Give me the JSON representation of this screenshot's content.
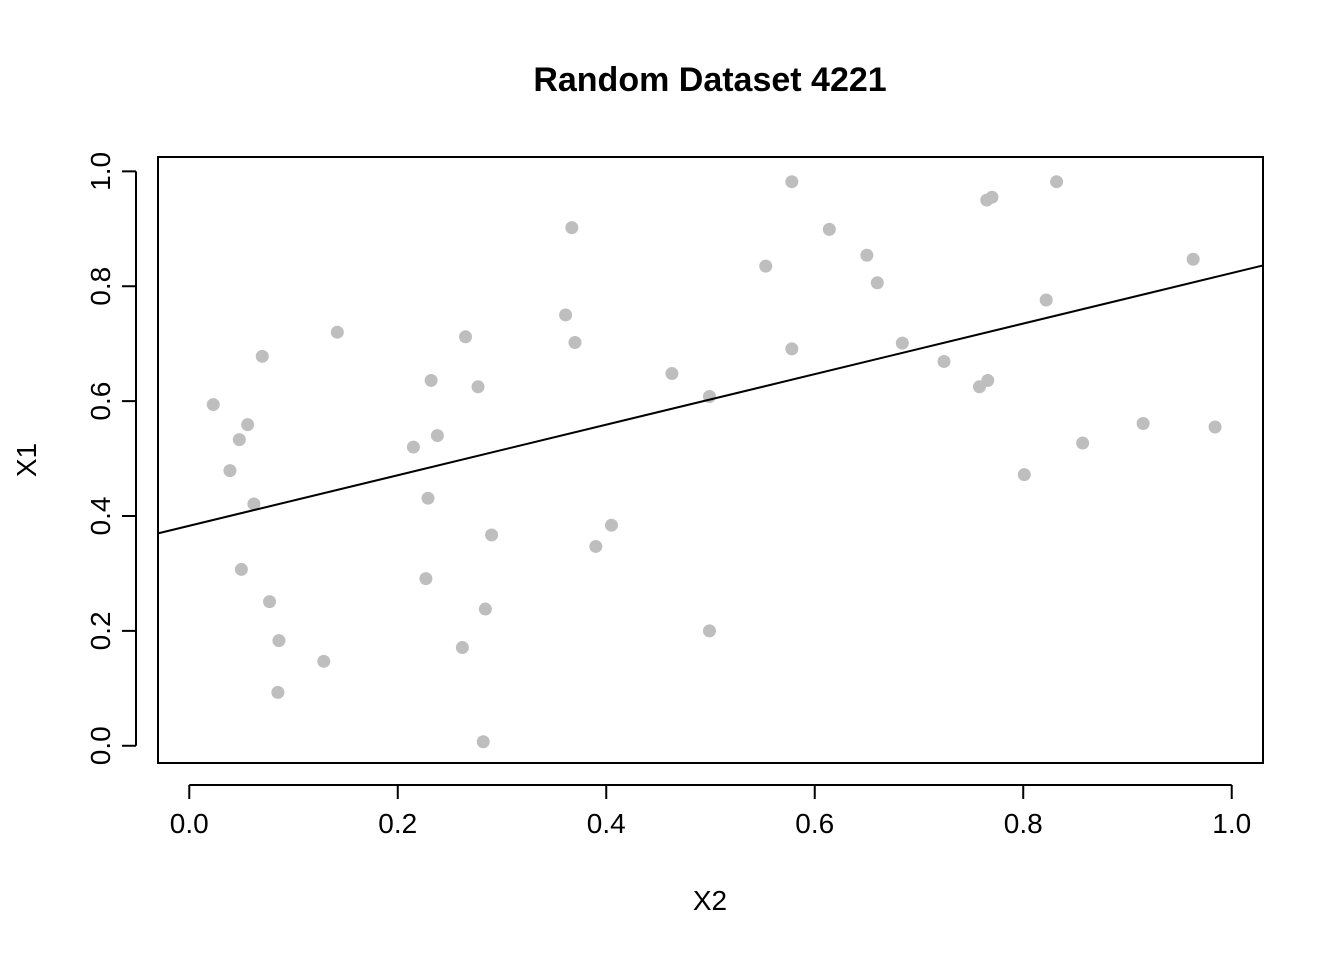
{
  "chart_data": {
    "type": "scatter",
    "title": "Random Dataset 4221",
    "xlabel": "X2",
    "ylabel": "X1",
    "xlim": [
      -0.03,
      1.03
    ],
    "ylim": [
      -0.03,
      1.025
    ],
    "x_ticks": [
      0.0,
      0.2,
      0.4,
      0.6,
      0.8,
      1.0
    ],
    "x_tick_labels": [
      "0.0",
      "0.2",
      "0.4",
      "0.6",
      "0.8",
      "1.0"
    ],
    "y_ticks": [
      0.0,
      0.2,
      0.4,
      0.6,
      0.8,
      1.0
    ],
    "y_tick_labels": [
      "0.0",
      "0.2",
      "0.4",
      "0.6",
      "0.8",
      "1.0"
    ],
    "grid": false,
    "point_color": "#bebebe",
    "line_color": "#000000",
    "points": [
      {
        "x": 0.023,
        "y": 0.594
      },
      {
        "x": 0.039,
        "y": 0.479
      },
      {
        "x": 0.048,
        "y": 0.533
      },
      {
        "x": 0.05,
        "y": 0.307
      },
      {
        "x": 0.056,
        "y": 0.559
      },
      {
        "x": 0.062,
        "y": 0.421
      },
      {
        "x": 0.07,
        "y": 0.678
      },
      {
        "x": 0.077,
        "y": 0.251
      },
      {
        "x": 0.085,
        "y": 0.093
      },
      {
        "x": 0.086,
        "y": 0.183
      },
      {
        "x": 0.129,
        "y": 0.147
      },
      {
        "x": 0.142,
        "y": 0.72
      },
      {
        "x": 0.215,
        "y": 0.52
      },
      {
        "x": 0.227,
        "y": 0.291
      },
      {
        "x": 0.229,
        "y": 0.431
      },
      {
        "x": 0.232,
        "y": 0.636
      },
      {
        "x": 0.238,
        "y": 0.54
      },
      {
        "x": 0.262,
        "y": 0.171
      },
      {
        "x": 0.265,
        "y": 0.712
      },
      {
        "x": 0.277,
        "y": 0.625
      },
      {
        "x": 0.282,
        "y": 0.007
      },
      {
        "x": 0.284,
        "y": 0.238
      },
      {
        "x": 0.29,
        "y": 0.367
      },
      {
        "x": 0.361,
        "y": 0.75
      },
      {
        "x": 0.367,
        "y": 0.902
      },
      {
        "x": 0.37,
        "y": 0.702
      },
      {
        "x": 0.39,
        "y": 0.347
      },
      {
        "x": 0.405,
        "y": 0.384
      },
      {
        "x": 0.463,
        "y": 0.648
      },
      {
        "x": 0.499,
        "y": 0.608
      },
      {
        "x": 0.499,
        "y": 0.2
      },
      {
        "x": 0.553,
        "y": 0.835
      },
      {
        "x": 0.578,
        "y": 0.982
      },
      {
        "x": 0.578,
        "y": 0.691
      },
      {
        "x": 0.614,
        "y": 0.899
      },
      {
        "x": 0.65,
        "y": 0.854
      },
      {
        "x": 0.66,
        "y": 0.806
      },
      {
        "x": 0.684,
        "y": 0.701
      },
      {
        "x": 0.724,
        "y": 0.669
      },
      {
        "x": 0.758,
        "y": 0.625
      },
      {
        "x": 0.765,
        "y": 0.95
      },
      {
        "x": 0.766,
        "y": 0.636
      },
      {
        "x": 0.77,
        "y": 0.955
      },
      {
        "x": 0.801,
        "y": 0.472
      },
      {
        "x": 0.822,
        "y": 0.776
      },
      {
        "x": 0.832,
        "y": 0.982
      },
      {
        "x": 0.857,
        "y": 0.527
      },
      {
        "x": 0.915,
        "y": 0.561
      },
      {
        "x": 0.963,
        "y": 0.847
      },
      {
        "x": 0.984,
        "y": 0.555
      }
    ],
    "fit_line": {
      "intercept": 0.383,
      "slope": 0.44
    }
  }
}
